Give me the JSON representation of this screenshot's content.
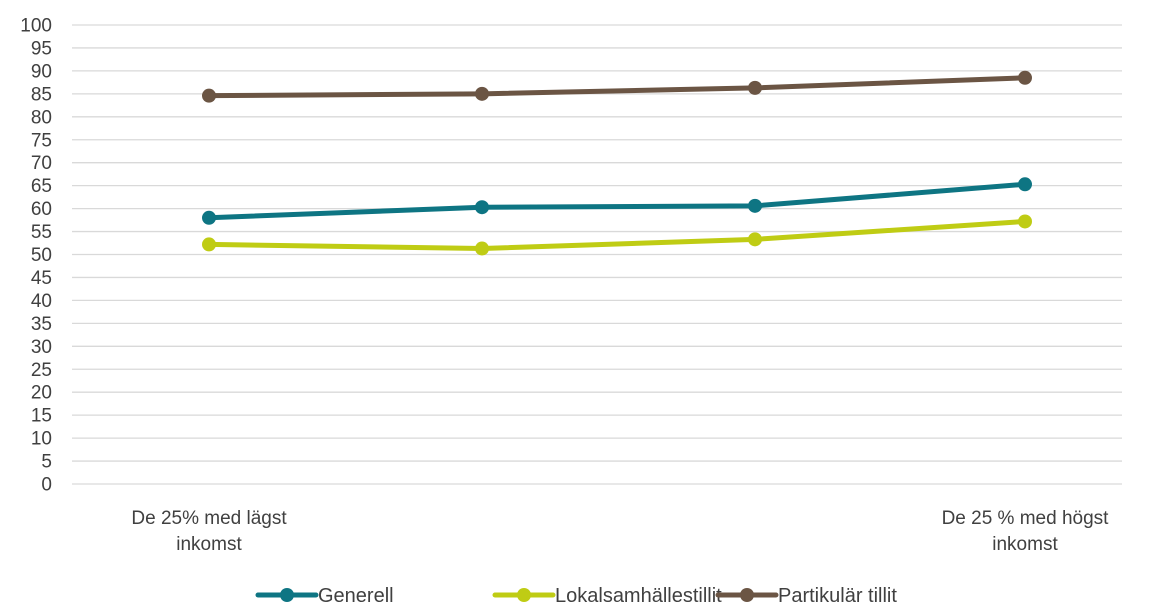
{
  "chart_data": {
    "type": "line",
    "categories": [
      [
        "De 25% med lägst",
        "inkomst"
      ],
      [],
      [],
      [
        "De 25 % med högst",
        "inkomst"
      ]
    ],
    "yticks": [
      "0",
      "5",
      "10",
      "15",
      "20",
      "25",
      "30",
      "35",
      "40",
      "45",
      "50",
      "55",
      "60",
      "65",
      "70",
      "75",
      "80",
      "85",
      "90",
      "95",
      "100"
    ],
    "ylim": [
      0,
      100
    ],
    "grid": true,
    "legend_position": "bottom",
    "series": [
      {
        "name": "Generell",
        "color": "#0E7583",
        "values": [
          58,
          60.3,
          60.6,
          65.3
        ]
      },
      {
        "name": "Lokalsamhällestillit",
        "color": "#BFCC14",
        "values": [
          52.2,
          51.3,
          53.3,
          57.2
        ]
      },
      {
        "name": "Partikulär tillit",
        "color": "#6B5544",
        "values": [
          84.6,
          85,
          86.3,
          88.5
        ]
      }
    ]
  }
}
